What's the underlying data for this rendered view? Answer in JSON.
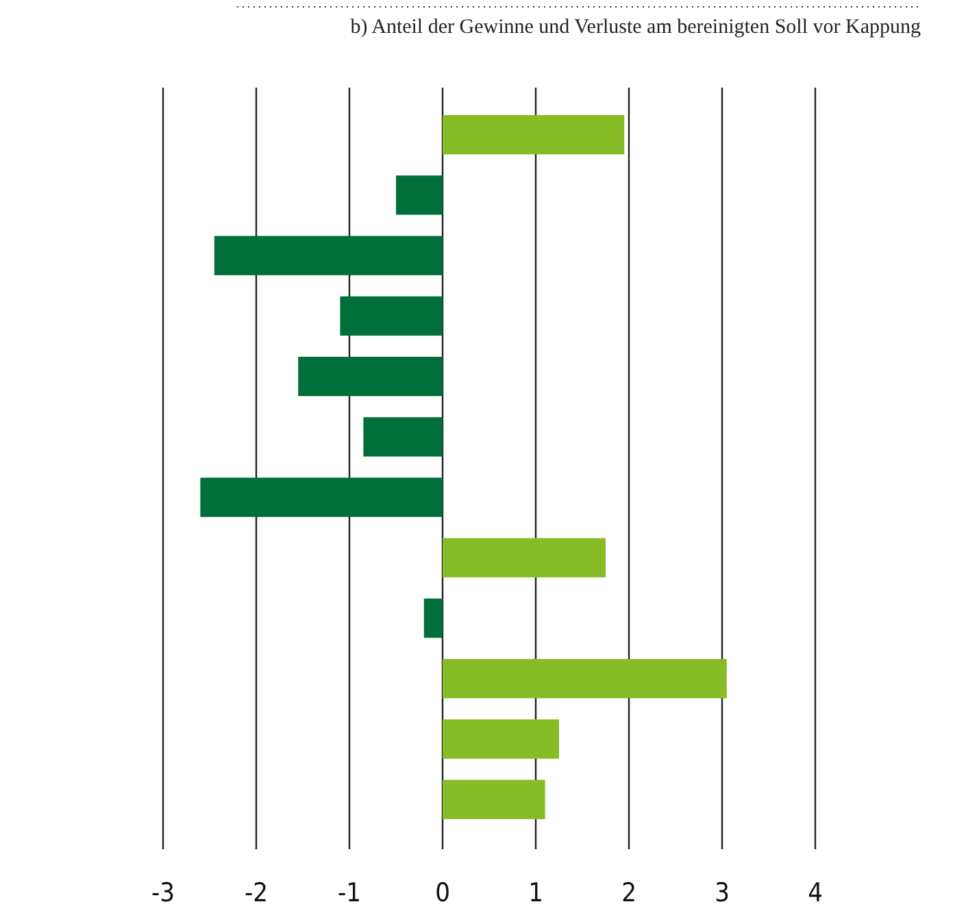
{
  "chart_data": {
    "type": "bar",
    "orientation": "horizontal",
    "title": "b) Anteil der Gewinne und Verluste am bereinigten Soll vor Kappung",
    "categories": [
      null,
      null,
      null,
      null,
      null,
      null,
      null,
      null,
      null,
      null,
      null,
      null
    ],
    "values": [
      1.95,
      -0.5,
      -2.45,
      -1.1,
      -1.55,
      -0.85,
      -2.6,
      1.75,
      -0.2,
      3.05,
      1.25,
      1.1
    ],
    "colors": [
      "#86bc25",
      "#006f3c",
      "#006f3c",
      "#006f3c",
      "#006f3c",
      "#006f3c",
      "#006f3c",
      "#86bc25",
      "#006f3c",
      "#86bc25",
      "#86bc25",
      "#86bc25"
    ],
    "xlim": [
      -3,
      4
    ],
    "xticks": [
      -3,
      -2,
      -1,
      0,
      1,
      2,
      3,
      4
    ],
    "grid": "x"
  }
}
